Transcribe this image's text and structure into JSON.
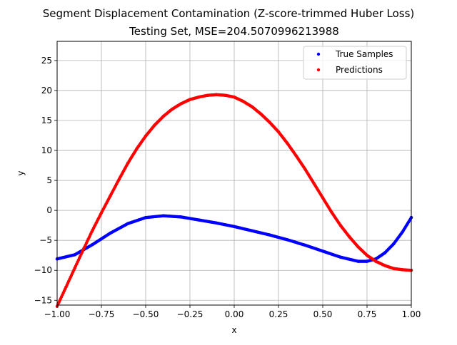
{
  "chart_data": {
    "type": "scatter",
    "title": "Segment Displacement Contamination (Z-score-trimmed Huber Loss)",
    "subtitle": "Testing Set, MSE=204.5070996213988",
    "xlabel": "x",
    "ylabel": "y",
    "xlim": [
      -1.0,
      1.0
    ],
    "ylim": [
      -15.8,
      28.2
    ],
    "xticks": [
      -1.0,
      -0.75,
      -0.5,
      -0.25,
      0.0,
      0.25,
      0.5,
      0.75,
      1.0
    ],
    "xtick_labels": [
      "−1.00",
      "−0.75",
      "−0.50",
      "−0.25",
      "0.00",
      "0.25",
      "0.50",
      "0.75",
      "1.00"
    ],
    "yticks": [
      -15,
      -10,
      -5,
      0,
      5,
      10,
      15,
      20,
      25
    ],
    "ytick_labels": [
      "−15",
      "−10",
      "−5",
      "0",
      "5",
      "10",
      "15",
      "20",
      "25"
    ],
    "grid": true,
    "legend_position": "top-right",
    "series": [
      {
        "name": "True Samples",
        "color": "#0000ff",
        "x": [
          -1.0,
          -0.9,
          -0.8,
          -0.7,
          -0.6,
          -0.5,
          -0.4,
          -0.3,
          -0.2,
          -0.1,
          0.0,
          0.1,
          0.2,
          0.3,
          0.4,
          0.5,
          0.6,
          0.7,
          0.75,
          0.8,
          0.85,
          0.9,
          0.95,
          1.0
        ],
        "y": [
          -8.1,
          -7.4,
          -5.7,
          -3.8,
          -2.2,
          -1.2,
          -0.9,
          -1.1,
          -1.6,
          -2.1,
          -2.7,
          -3.4,
          -4.1,
          -4.9,
          -5.8,
          -6.8,
          -7.8,
          -8.5,
          -8.5,
          -8.1,
          -7.1,
          -5.6,
          -3.6,
          -1.2
        ]
      },
      {
        "name": "Predictions",
        "color": "#ff0000",
        "x": [
          -1.0,
          -0.95,
          -0.9,
          -0.85,
          -0.8,
          -0.75,
          -0.7,
          -0.65,
          -0.6,
          -0.55,
          -0.5,
          -0.45,
          -0.4,
          -0.35,
          -0.3,
          -0.25,
          -0.2,
          -0.15,
          -0.1,
          -0.05,
          0.0,
          0.05,
          0.1,
          0.15,
          0.2,
          0.25,
          0.3,
          0.35,
          0.4,
          0.45,
          0.5,
          0.55,
          0.6,
          0.65,
          0.7,
          0.75,
          0.8,
          0.85,
          0.9,
          0.95,
          1.0
        ],
        "y": [
          -16.0,
          -12.8,
          -9.6,
          -6.4,
          -3.3,
          -0.4,
          2.4,
          5.2,
          7.9,
          10.3,
          12.4,
          14.2,
          15.7,
          16.9,
          17.8,
          18.5,
          18.9,
          19.2,
          19.3,
          19.2,
          18.9,
          18.2,
          17.3,
          16.1,
          14.7,
          13.1,
          11.2,
          9.1,
          6.9,
          4.5,
          2.1,
          -0.3,
          -2.5,
          -4.4,
          -6.1,
          -7.5,
          -8.5,
          -9.2,
          -9.7,
          -9.9,
          -10.0
        ]
      }
    ]
  }
}
